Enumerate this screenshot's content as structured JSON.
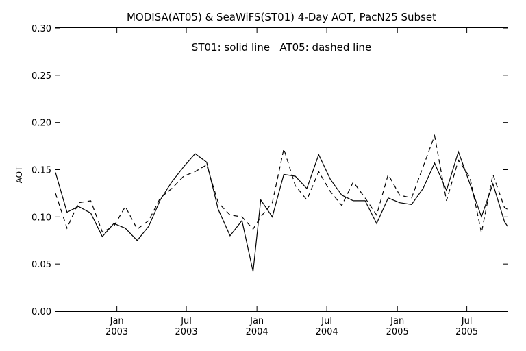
{
  "chart_data": {
    "type": "line",
    "title": "MODISA(AT05) & SeaWiFS(ST01) 4-Day AOT, PacN25 Subset",
    "annotation": "ST01: solid line   AT05: dashed line",
    "ylabel": "AOT",
    "xlabel": "",
    "xlim": [
      "2002-07-25",
      "2005-10-15"
    ],
    "ylim": [
      0.0,
      0.3
    ],
    "yticks": [
      "0.00",
      "0.05",
      "0.10",
      "0.15",
      "0.20",
      "0.25",
      "0.30"
    ],
    "xticks": [
      {
        "x": "2003-01-01",
        "month": "Jan",
        "year": "2003"
      },
      {
        "x": "2003-07-01",
        "month": "Jul",
        "year": "2003"
      },
      {
        "x": "2004-01-01",
        "month": "Jan",
        "year": "2004"
      },
      {
        "x": "2004-07-01",
        "month": "Jul",
        "year": "2004"
      },
      {
        "x": "2005-01-01",
        "month": "Jan",
        "year": "2005"
      },
      {
        "x": "2005-07-01",
        "month": "Jul",
        "year": "2005"
      }
    ],
    "grid": false,
    "legend": "none",
    "series": [
      {
        "label": "ST01",
        "style": "solid",
        "color": "#000000",
        "x": [
          "2002-07-25",
          "2002-08-24",
          "2002-09-23",
          "2002-10-25",
          "2002-11-24",
          "2002-12-24",
          "2003-01-23",
          "2003-02-23",
          "2003-03-25",
          "2003-04-24",
          "2003-05-24",
          "2003-06-24",
          "2003-07-24",
          "2003-08-23",
          "2003-09-22",
          "2003-10-23",
          "2003-11-23",
          "2003-12-22",
          "2004-01-11",
          "2004-02-10",
          "2004-03-11",
          "2004-04-10",
          "2004-05-10",
          "2004-06-10",
          "2004-07-10",
          "2004-08-09",
          "2004-09-08",
          "2004-10-09",
          "2004-11-08",
          "2004-12-08",
          "2005-01-07",
          "2005-02-07",
          "2005-03-09",
          "2005-04-08",
          "2005-05-09",
          "2005-06-09",
          "2005-07-09",
          "2005-08-08",
          "2005-09-07",
          "2005-10-07",
          "2005-10-15"
        ],
        "y": [
          0.147,
          0.105,
          0.111,
          0.104,
          0.079,
          0.093,
          0.088,
          0.075,
          0.09,
          0.118,
          0.137,
          0.153,
          0.167,
          0.158,
          0.108,
          0.08,
          0.096,
          0.042,
          0.118,
          0.1,
          0.145,
          0.143,
          0.13,
          0.166,
          0.14,
          0.123,
          0.117,
          0.117,
          0.093,
          0.12,
          0.115,
          0.113,
          0.13,
          0.157,
          0.128,
          0.169,
          0.135,
          0.1,
          0.135,
          0.095,
          0.09
        ]
      },
      {
        "label": "AT05",
        "style": "dashed",
        "color": "#000000",
        "x": [
          "2002-07-25",
          "2002-08-24",
          "2002-09-23",
          "2002-10-25",
          "2002-11-24",
          "2002-12-24",
          "2003-01-23",
          "2003-02-23",
          "2003-03-25",
          "2003-04-24",
          "2003-05-24",
          "2003-06-24",
          "2003-07-24",
          "2003-08-23",
          "2003-09-22",
          "2003-10-23",
          "2003-11-23",
          "2003-12-22",
          "2004-01-11",
          "2004-02-10",
          "2004-03-11",
          "2004-04-10",
          "2004-05-10",
          "2004-06-10",
          "2004-07-10",
          "2004-08-09",
          "2004-09-08",
          "2004-10-09",
          "2004-11-08",
          "2004-12-08",
          "2005-01-07",
          "2005-02-07",
          "2005-03-09",
          "2005-04-08",
          "2005-05-09",
          "2005-06-09",
          "2005-07-09",
          "2005-08-08",
          "2005-09-07",
          "2005-10-07",
          "2005-10-15"
        ],
        "y": [
          0.125,
          0.088,
          0.115,
          0.117,
          0.084,
          0.09,
          0.111,
          0.087,
          0.096,
          0.12,
          0.13,
          0.143,
          0.148,
          0.155,
          0.115,
          0.102,
          0.1,
          0.087,
          0.1,
          0.115,
          0.172,
          0.133,
          0.118,
          0.148,
          0.127,
          0.112,
          0.137,
          0.12,
          0.102,
          0.145,
          0.123,
          0.12,
          0.153,
          0.186,
          0.117,
          0.16,
          0.142,
          0.083,
          0.145,
          0.11,
          0.108
        ]
      }
    ]
  }
}
